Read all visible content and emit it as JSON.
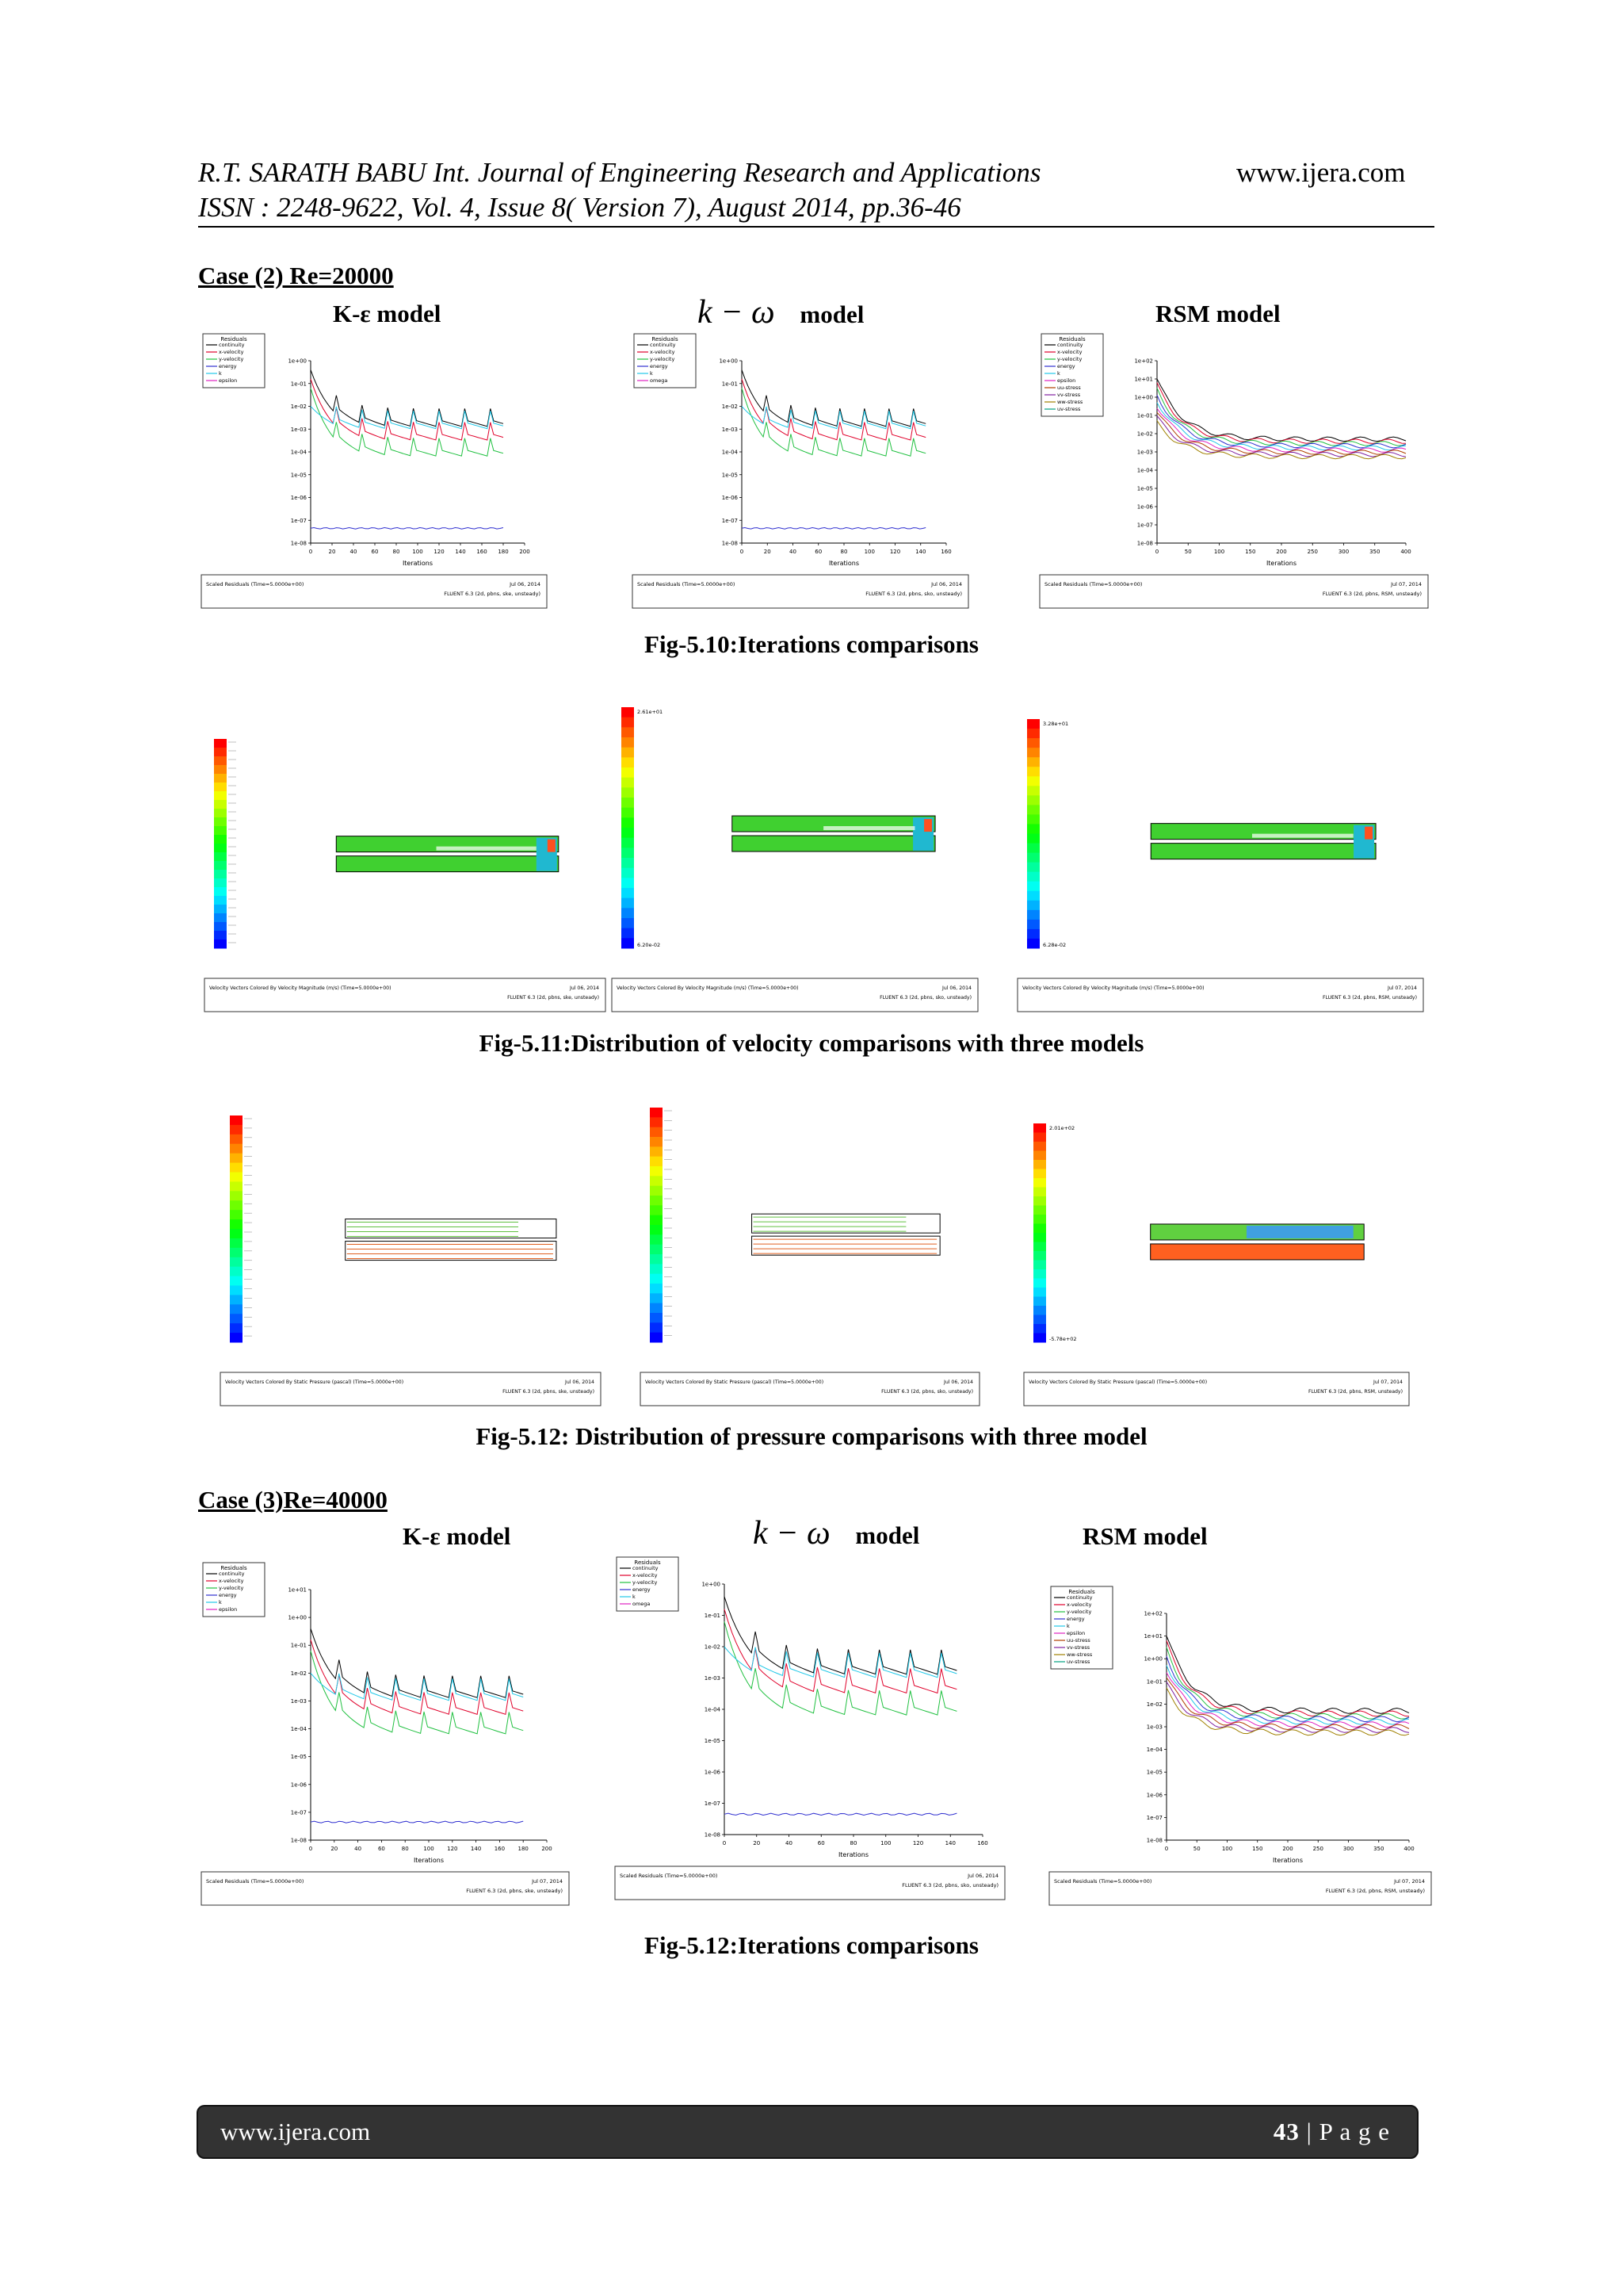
{
  "header": {
    "line1": "R.T. SARATH BABU Int. Journal of Engineering Research and Applications",
    "site": "www.ijera.com",
    "line2": "ISSN : 2248-9622, Vol. 4, Issue 8( Version 7), August 2014, pp.36-46"
  },
  "case2": {
    "heading": "Case (2) Re=20000",
    "models": {
      "ke": "K-ε model",
      "kw_symbol": "k − ω",
      "kw_word": "model",
      "rsm": "RSM model"
    },
    "fig10": "Fig-5.10:Iterations comparisons",
    "fig11": "Fig-5.11:Distribution of velocity comparisons with three models",
    "fig12": "Fig-5.12: Distribution of pressure comparisons with three model"
  },
  "case3": {
    "heading": "Case (3)Re=40000",
    "models": {
      "ke": "K-ε model",
      "kw_symbol": "k − ω",
      "kw_word": "model",
      "rsm": "RSM model"
    },
    "fig12b": "Fig-5.12:Iterations comparisons"
  },
  "plot_text": {
    "residuals_title": "Residuals",
    "xlabel": "Iterations",
    "scaled_residuals": "Scaled Residuals  (Time=5.0000e+00)",
    "velocity_caption": "Velocity Vectors Colored By Velocity Magnitude (m/s)  (Time=5.0000e+00)",
    "pressure_caption": "Velocity Vectors Colored By Static Pressure (pascal)  (Time=5.0000e+00)",
    "fluent_ke": "FLUENT 6.3 (2d, pbns, ske, unsteady)",
    "fluent_kw": "FLUENT 6.3 (2d, pbns, sko, unsteady)",
    "fluent_rsm": "FLUENT 6.3 (2d, pbns, RSM, unsteady)",
    "date_a": "Jul 06, 2014",
    "date_b": "Jul 07, 2014",
    "legend_ke": [
      "continuity",
      "x-velocity",
      "y-velocity",
      "energy",
      "k",
      "epsilon"
    ],
    "legend_kw": [
      "continuity",
      "x-velocity",
      "y-velocity",
      "energy",
      "k",
      "omega"
    ],
    "legend_rsm": [
      "continuity",
      "x-velocity",
      "y-velocity",
      "energy",
      "k",
      "epsilon",
      "uu-stress",
      "vv-stress",
      "ww-stress",
      "uv-stress"
    ],
    "vel_max_kw": "2.61e+01",
    "vel_min_kw": "6.20e-02",
    "vel_max_rsm": "3.28e+01",
    "vel_min_rsm": "6.28e-02",
    "pres_max_rsm": "2.01e+02",
    "pres_min_rsm": "-5.78e+02"
  },
  "residual_charts": [
    {
      "model": "k-epsilon",
      "re": 20000,
      "type": "line",
      "y_log": true,
      "ylim": [
        "1e-08",
        "1e+00"
      ],
      "x_ticks": [
        0,
        20,
        40,
        60,
        80,
        100,
        120,
        140,
        160,
        180,
        200
      ],
      "xmax": 200
    },
    {
      "model": "k-omega",
      "re": 20000,
      "type": "line",
      "y_log": true,
      "ylim": [
        "1e-08",
        "1e+00"
      ],
      "x_ticks": [
        0,
        20,
        40,
        60,
        80,
        100,
        120,
        140,
        160
      ],
      "xmax": 160
    },
    {
      "model": "RSM",
      "re": 20000,
      "type": "line",
      "y_log": true,
      "ylim": [
        "1e-08",
        "1e+02"
      ],
      "x_ticks": [
        0,
        50,
        100,
        150,
        200,
        250,
        300,
        350,
        400
      ],
      "xmax": 400
    },
    {
      "model": "k-epsilon",
      "re": 40000,
      "type": "line",
      "y_log": true,
      "ylim": [
        "1e-08",
        "1e+01"
      ],
      "x_ticks": [
        0,
        20,
        40,
        60,
        80,
        100,
        120,
        140,
        160,
        180,
        200
      ],
      "xmax": 200
    },
    {
      "model": "k-omega",
      "re": 40000,
      "type": "line",
      "y_log": true,
      "ylim": [
        "1e-08",
        "1e+00"
      ],
      "x_ticks": [
        0,
        20,
        40,
        60,
        80,
        100,
        120,
        140,
        160
      ],
      "xmax": 160
    },
    {
      "model": "RSM",
      "re": 40000,
      "type": "line",
      "y_log": true,
      "ylim": [
        "1e-08",
        "1e+02"
      ],
      "x_ticks": [
        0,
        50,
        100,
        150,
        200,
        250,
        300,
        350,
        400
      ],
      "xmax": 400
    }
  ],
  "footer": {
    "site": "www.ijera.com",
    "page": "43",
    "sep": " | ",
    "page_word": "P a g e"
  }
}
